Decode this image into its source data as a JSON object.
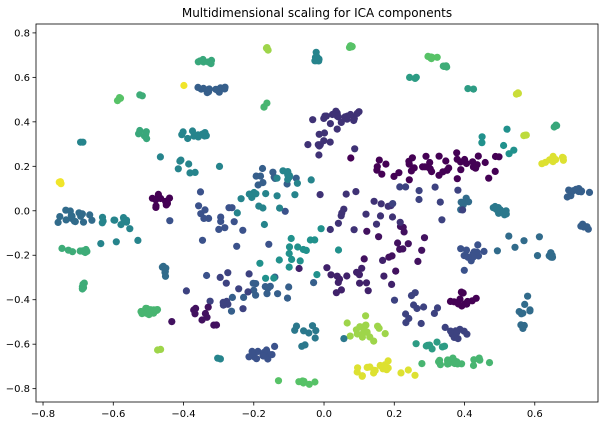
{
  "chart_data": {
    "type": "scatter",
    "title": "Multidimensional scaling for ICA components",
    "xlabel": "",
    "ylabel": "",
    "xlim": [
      -0.82,
      0.78
    ],
    "ylim": [
      -0.86,
      0.84
    ],
    "xticks": [
      -0.8,
      -0.6,
      -0.4,
      -0.2,
      0.0,
      0.2,
      0.4,
      0.6
    ],
    "yticks": [
      -0.8,
      -0.6,
      -0.4,
      -0.2,
      0.0,
      0.2,
      0.4,
      0.6,
      0.8
    ],
    "xtick_labels": [
      "−0.8",
      "−0.6",
      "−0.4",
      "−0.2",
      "0.0",
      "0.2",
      "0.4",
      "0.6"
    ],
    "ytick_labels": [
      "−0.8",
      "−0.6",
      "−0.4",
      "−0.2",
      "0.0",
      "0.2",
      "0.4",
      "0.6",
      "0.8"
    ],
    "grid": false,
    "colormap": "viridis",
    "colors": [
      "#440154",
      "#3b528b",
      "#21918c",
      "#5ec962",
      "#fde725"
    ],
    "clusters": [
      {
        "x": 0.05,
        "y": 0.42,
        "sx": 0.04,
        "sy": 0.02,
        "n": 20,
        "c": 0.15
      },
      {
        "x": 0.4,
        "y": 0.2,
        "sx": 0.06,
        "sy": 0.03,
        "n": 28,
        "c": 0.0
      },
      {
        "x": 0.2,
        "y": 0.2,
        "sx": 0.06,
        "sy": 0.03,
        "n": 16,
        "c": 0.0
      },
      {
        "x": -0.15,
        "y": 0.14,
        "sx": 0.04,
        "sy": 0.02,
        "n": 10,
        "c": 0.3
      },
      {
        "x": -0.1,
        "y": 0.15,
        "sx": 0.03,
        "sy": 0.02,
        "n": 8,
        "c": 0.45
      },
      {
        "x": -0.47,
        "y": 0.04,
        "sx": 0.02,
        "sy": 0.02,
        "n": 12,
        "c": 0.0
      },
      {
        "x": -0.7,
        "y": -0.03,
        "sx": 0.03,
        "sy": 0.015,
        "n": 16,
        "c": 0.35
      },
      {
        "x": -0.6,
        "y": -0.04,
        "sx": 0.02,
        "sy": 0.01,
        "n": 6,
        "c": 0.45
      },
      {
        "x": -0.7,
        "y": -0.18,
        "sx": 0.02,
        "sy": 0.01,
        "n": 10,
        "c": 0.62
      },
      {
        "x": -0.69,
        "y": -0.34,
        "sx": 0.005,
        "sy": 0.01,
        "n": 6,
        "c": 0.62
      },
      {
        "x": -0.5,
        "y": -0.45,
        "sx": 0.02,
        "sy": 0.01,
        "n": 18,
        "c": 0.66
      },
      {
        "x": -0.45,
        "y": -0.27,
        "sx": 0.01,
        "sy": 0.02,
        "n": 6,
        "c": 0.35
      },
      {
        "x": -0.17,
        "y": -0.64,
        "sx": 0.02,
        "sy": 0.02,
        "n": 14,
        "c": 0.25
      },
      {
        "x": -0.06,
        "y": -0.77,
        "sx": 0.02,
        "sy": 0.005,
        "n": 8,
        "c": 0.72
      },
      {
        "x": 0.15,
        "y": -0.71,
        "sx": 0.04,
        "sy": 0.015,
        "n": 20,
        "c": 0.95
      },
      {
        "x": 0.12,
        "y": -0.54,
        "sx": 0.03,
        "sy": 0.03,
        "n": 18,
        "c": 0.85
      },
      {
        "x": 0.36,
        "y": -0.68,
        "sx": 0.04,
        "sy": 0.01,
        "n": 22,
        "c": 0.66
      },
      {
        "x": 0.32,
        "y": -0.6,
        "sx": 0.02,
        "sy": 0.01,
        "n": 8,
        "c": 0.55
      },
      {
        "x": 0.4,
        "y": -0.4,
        "sx": 0.02,
        "sy": 0.02,
        "n": 12,
        "c": 0.0
      },
      {
        "x": 0.42,
        "y": -0.2,
        "sx": 0.02,
        "sy": 0.02,
        "n": 14,
        "c": 0.25
      },
      {
        "x": 0.38,
        "y": -0.55,
        "sx": 0.02,
        "sy": 0.02,
        "n": 10,
        "c": 0.2
      },
      {
        "x": 0.57,
        "y": -0.45,
        "sx": 0.01,
        "sy": 0.03,
        "n": 10,
        "c": 0.35
      },
      {
        "x": 0.5,
        "y": 0.0,
        "sx": 0.02,
        "sy": 0.01,
        "n": 10,
        "c": 0.4
      },
      {
        "x": 0.64,
        "y": -0.2,
        "sx": 0.02,
        "sy": 0.005,
        "n": 8,
        "c": 0.35
      },
      {
        "x": 0.73,
        "y": -0.07,
        "sx": 0.01,
        "sy": 0.005,
        "n": 5,
        "c": 0.3
      },
      {
        "x": 0.72,
        "y": 0.08,
        "sx": 0.02,
        "sy": 0.01,
        "n": 12,
        "c": 0.3
      },
      {
        "x": 0.66,
        "y": 0.23,
        "sx": 0.02,
        "sy": 0.01,
        "n": 10,
        "c": 0.95
      },
      {
        "x": 0.66,
        "y": 0.38,
        "sx": 0.003,
        "sy": 0.005,
        "n": 3,
        "c": 0.6
      },
      {
        "x": 0.57,
        "y": 0.34,
        "sx": 0.005,
        "sy": 0.005,
        "n": 3,
        "c": 0.9
      },
      {
        "x": 0.55,
        "y": 0.53,
        "sx": 0.005,
        "sy": 0.005,
        "n": 3,
        "c": 0.92
      },
      {
        "x": 0.31,
        "y": 0.69,
        "sx": 0.01,
        "sy": 0.005,
        "n": 6,
        "c": 0.72
      },
      {
        "x": 0.34,
        "y": 0.65,
        "sx": 0.01,
        "sy": 0.005,
        "n": 4,
        "c": 0.62
      },
      {
        "x": 0.26,
        "y": 0.6,
        "sx": 0.008,
        "sy": 0.004,
        "n": 3,
        "c": 0.55
      },
      {
        "x": 0.42,
        "y": 0.55,
        "sx": 0.005,
        "sy": 0.005,
        "n": 2,
        "c": 0.55
      },
      {
        "x": 0.08,
        "y": 0.74,
        "sx": 0.008,
        "sy": 0.005,
        "n": 4,
        "c": 0.72
      },
      {
        "x": -0.02,
        "y": 0.68,
        "sx": 0.005,
        "sy": 0.01,
        "n": 8,
        "c": 0.45
      },
      {
        "x": -0.16,
        "y": 0.73,
        "sx": 0.005,
        "sy": 0.005,
        "n": 3,
        "c": 0.85
      },
      {
        "x": -0.34,
        "y": 0.67,
        "sx": 0.02,
        "sy": 0.005,
        "n": 8,
        "c": 0.6
      },
      {
        "x": -0.33,
        "y": 0.54,
        "sx": 0.03,
        "sy": 0.01,
        "n": 14,
        "c": 0.3
      },
      {
        "x": -0.36,
        "y": 0.34,
        "sx": 0.03,
        "sy": 0.01,
        "n": 12,
        "c": 0.45
      },
      {
        "x": -0.52,
        "y": 0.34,
        "sx": 0.01,
        "sy": 0.01,
        "n": 6,
        "c": 0.6
      },
      {
        "x": -0.58,
        "y": 0.5,
        "sx": 0.003,
        "sy": 0.005,
        "n": 3,
        "c": 0.72
      },
      {
        "x": -0.52,
        "y": 0.52,
        "sx": 0.003,
        "sy": 0.003,
        "n": 2,
        "c": 0.62
      },
      {
        "x": -0.75,
        "y": 0.13,
        "sx": 0.005,
        "sy": 0.005,
        "n": 3,
        "c": 0.98
      },
      {
        "x": -0.69,
        "y": 0.31,
        "sx": 0.003,
        "sy": 0.005,
        "n": 2,
        "c": 0.45
      },
      {
        "x": -0.17,
        "y": 0.47,
        "sx": 0.005,
        "sy": 0.01,
        "n": 3,
        "c": 0.66
      },
      {
        "x": -0.4,
        "y": 0.56,
        "sx": 0.005,
        "sy": 0.005,
        "n": 1,
        "c": 0.98
      },
      {
        "x": -0.47,
        "y": -0.63,
        "sx": 0.005,
        "sy": 0.005,
        "n": 2,
        "c": 0.85
      },
      {
        "x": -0.3,
        "y": -0.67,
        "sx": 0.005,
        "sy": 0.005,
        "n": 2,
        "c": 0.45
      },
      {
        "x": 0.4,
        "y": 0.02,
        "sx": 0.015,
        "sy": 0.015,
        "n": 6,
        "c": 0.35
      },
      {
        "x": -0.15,
        "y": -0.35,
        "sx": 0.05,
        "sy": 0.04,
        "n": 16,
        "c": 0.3
      },
      {
        "x": 0.1,
        "y": -0.3,
        "sx": 0.06,
        "sy": 0.04,
        "n": 18,
        "c": 0.1
      },
      {
        "x": -0.28,
        "y": -0.35,
        "sx": 0.05,
        "sy": 0.05,
        "n": 14,
        "c": 0.2
      },
      {
        "x": -0.05,
        "y": -0.2,
        "sx": 0.07,
        "sy": 0.05,
        "n": 18,
        "c": 0.5
      },
      {
        "x": 0.2,
        "y": -0.15,
        "sx": 0.06,
        "sy": 0.05,
        "n": 16,
        "c": 0.05
      },
      {
        "x": -0.3,
        "y": -0.05,
        "sx": 0.06,
        "sy": 0.06,
        "n": 20,
        "c": 0.25
      },
      {
        "x": 0.1,
        "y": 0.0,
        "sx": 0.07,
        "sy": 0.05,
        "n": 18,
        "c": 0.15
      },
      {
        "x": -0.2,
        "y": 0.05,
        "sx": 0.05,
        "sy": 0.05,
        "n": 14,
        "c": 0.45
      },
      {
        "x": 0.25,
        "y": -0.45,
        "sx": 0.05,
        "sy": 0.05,
        "n": 12,
        "c": 0.2
      },
      {
        "x": -0.35,
        "y": -0.5,
        "sx": 0.04,
        "sy": 0.04,
        "n": 10,
        "c": 0.05
      },
      {
        "x": 0.3,
        "y": 0.05,
        "sx": 0.05,
        "sy": 0.05,
        "n": 10,
        "c": 0.2
      },
      {
        "x": 0.0,
        "y": 0.3,
        "sx": 0.05,
        "sy": 0.05,
        "n": 10,
        "c": 0.15
      },
      {
        "x": -0.4,
        "y": 0.2,
        "sx": 0.06,
        "sy": 0.05,
        "n": 8,
        "c": 0.45
      },
      {
        "x": 0.5,
        "y": 0.3,
        "sx": 0.05,
        "sy": 0.05,
        "n": 6,
        "c": 0.5
      },
      {
        "x": -0.55,
        "y": -0.1,
        "sx": 0.05,
        "sy": 0.05,
        "n": 8,
        "c": 0.45
      },
      {
        "x": -0.05,
        "y": -0.55,
        "sx": 0.05,
        "sy": 0.04,
        "n": 10,
        "c": 0.4
      },
      {
        "x": 0.55,
        "y": -0.1,
        "sx": 0.04,
        "sy": 0.05,
        "n": 5,
        "c": 0.35
      }
    ]
  }
}
